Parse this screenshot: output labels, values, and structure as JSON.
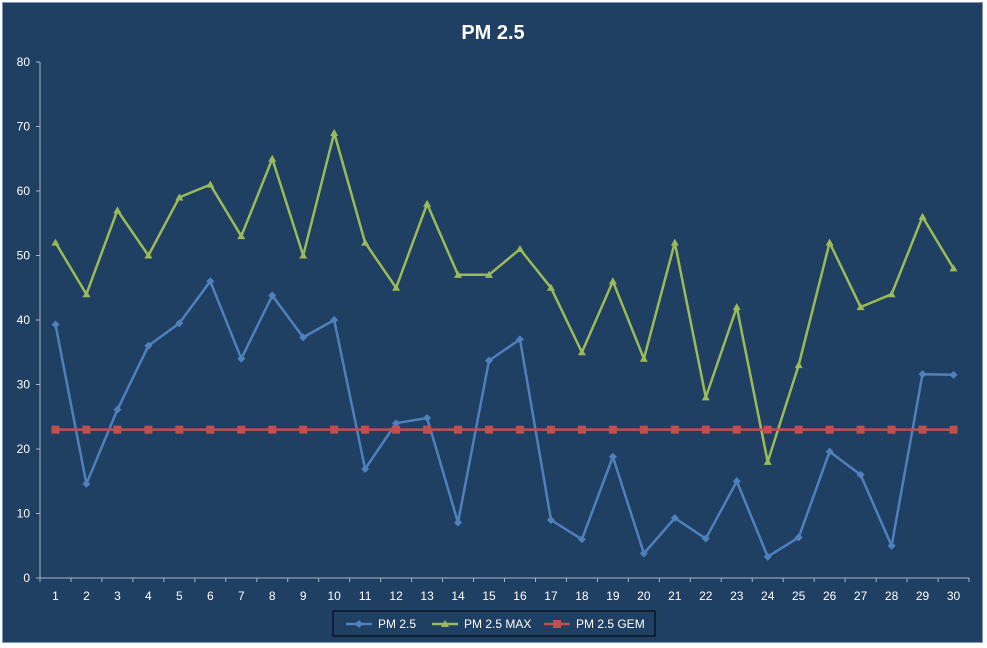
{
  "chart_data": {
    "type": "line",
    "title": "PM 2.5",
    "xlabel": "",
    "ylabel": "",
    "categories": [
      "1",
      "2",
      "3",
      "4",
      "5",
      "6",
      "7",
      "8",
      "9",
      "10",
      "11",
      "12",
      "13",
      "14",
      "15",
      "16",
      "17",
      "18",
      "19",
      "20",
      "21",
      "22",
      "23",
      "24",
      "25",
      "26",
      "27",
      "28",
      "29",
      "30"
    ],
    "ylim": [
      0,
      80
    ],
    "yticks": [
      0,
      10,
      20,
      30,
      40,
      50,
      60,
      70,
      80
    ],
    "grid": false,
    "legend_position": "bottom",
    "series": [
      {
        "name": "PM 2.5",
        "color": "#4f81bd",
        "marker": "diamond",
        "values": [
          39.3,
          14.6,
          26.1,
          36.0,
          39.5,
          46.0,
          34.0,
          43.8,
          37.3,
          40.0,
          16.9,
          24.0,
          24.8,
          8.6,
          33.7,
          37.0,
          9.0,
          6.0,
          18.8,
          3.8,
          9.3,
          6.1,
          15.0,
          3.3,
          6.3,
          19.6,
          16.0,
          5.0,
          31.6,
          31.5
        ]
      },
      {
        "name": "PM 2.5 MAX",
        "color": "#9bbb59",
        "marker": "triangle",
        "values": [
          52,
          44,
          57,
          50,
          59,
          61,
          53,
          65,
          50,
          69,
          52,
          45,
          58,
          47,
          47,
          51,
          45,
          35,
          46,
          34,
          52,
          28,
          42,
          18,
          33,
          52,
          42,
          44,
          56,
          48
        ]
      },
      {
        "name": "PM 2.5 GEM",
        "color": "#c0504d",
        "marker": "square",
        "values": [
          23,
          23,
          23,
          23,
          23,
          23,
          23,
          23,
          23,
          23,
          23,
          23,
          23,
          23,
          23,
          23,
          23,
          23,
          23,
          23,
          23,
          23,
          23,
          23,
          23,
          23,
          23,
          23,
          23,
          23
        ]
      }
    ]
  }
}
